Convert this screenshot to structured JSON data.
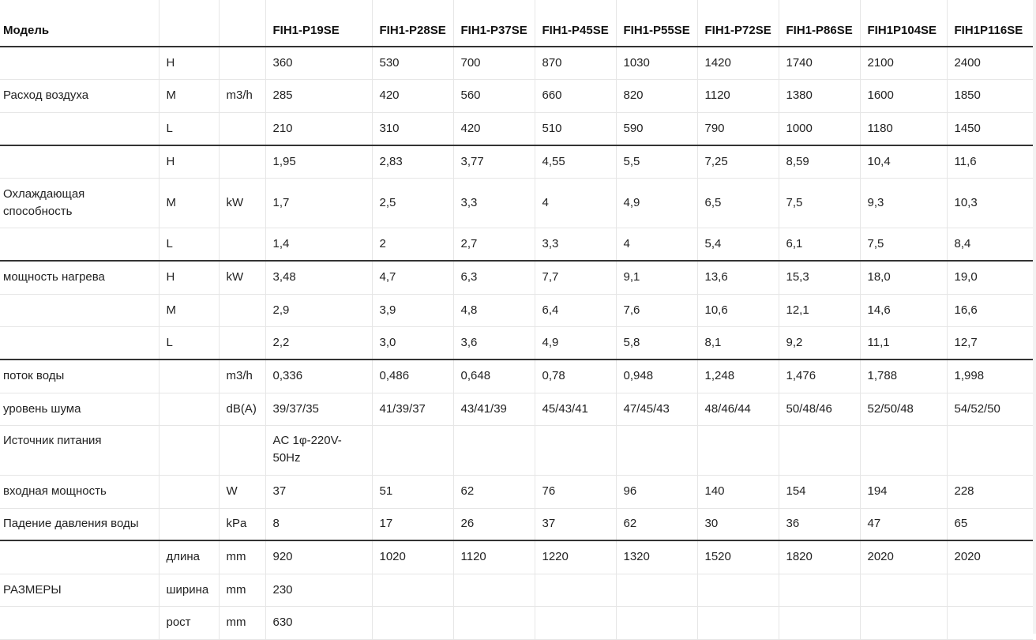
{
  "header": {
    "model_label": "Модель",
    "models": [
      "FIH1-P19SE",
      "FIH1-P28SE",
      "FIH1-P37SE",
      "FIH1-P45SE",
      "FIH1-P55SE",
      "FIH1-P72SE",
      "FIH1-P86SE",
      "FIH1P104SE",
      "FIH1P116SE"
    ]
  },
  "rows": {
    "air_h": [
      "",
      "H",
      "",
      "360",
      "530",
      "700",
      "870",
      "1030",
      "1420",
      "1740",
      "2100",
      "2400"
    ],
    "air_m": [
      "Расход воздуха",
      "M",
      "m3/h",
      "285",
      "420",
      "560",
      "660",
      "820",
      "1120",
      "1380",
      "1600",
      "1850"
    ],
    "air_l": [
      "",
      "L",
      "",
      "210",
      "310",
      "420",
      "510",
      "590",
      "790",
      "1000",
      "1180",
      "1450"
    ],
    "cool_h": [
      "",
      "H",
      "",
      "1,95",
      "2,83",
      "3,77",
      "4,55",
      "5,5",
      "7,25",
      "8,59",
      "10,4",
      "11,6"
    ],
    "cool_m": [
      "Охлаждающая способность",
      "M",
      "kW",
      "1,7",
      "2,5",
      "3,3",
      "4",
      "4,9",
      "6,5",
      "7,5",
      "9,3",
      "10,3"
    ],
    "cool_l": [
      "",
      "L",
      "",
      "1,4",
      "2",
      "2,7",
      "3,3",
      "4",
      "5,4",
      "6,1",
      "7,5",
      "8,4"
    ],
    "heat_h": [
      "мощность нагрева",
      "H",
      "kW",
      "3,48",
      "4,7",
      "6,3",
      "7,7",
      "9,1",
      "13,6",
      "15,3",
      "18,0",
      "19,0"
    ],
    "heat_m": [
      "",
      "M",
      "",
      "2,9",
      "3,9",
      "4,8",
      "6,4",
      "7,6",
      "10,6",
      "12,1",
      "14,6",
      "16,6"
    ],
    "heat_l": [
      "",
      "L",
      "",
      "2,2",
      "3,0",
      "3,6",
      "4,9",
      "5,8",
      "8,1",
      "9,2",
      "11,1",
      "12,7"
    ],
    "water_flow": [
      "поток воды",
      "",
      "m3/h",
      "0,336",
      "0,486",
      "0,648",
      "0,78",
      "0,948",
      "1,248",
      "1,476",
      "1,788",
      "1,998"
    ],
    "noise": [
      "уровень шума",
      "",
      "dB(A)",
      "39/37/35",
      "41/39/37",
      "43/41/39",
      "45/43/41",
      "47/45/43",
      "48/46/44",
      "50/48/46",
      "52/50/48",
      "54/52/50"
    ],
    "power_source": [
      "Источник питания",
      "",
      "",
      "AC 1φ-220V-50Hz",
      "",
      "",
      "",
      "",
      "",
      "",
      "",
      ""
    ],
    "input_power": [
      "входная мощность",
      "",
      "W",
      "37",
      "51",
      "62",
      "76",
      "96",
      "140",
      "154",
      "194",
      "228"
    ],
    "pressure_drop": [
      "Падение давления воды",
      "",
      "kPa",
      "8",
      "17",
      "26",
      "37",
      "62",
      "30",
      "36",
      "47",
      "65"
    ],
    "dim_length": [
      "",
      "длина",
      "mm",
      "920",
      "1020",
      "1120",
      "1220",
      "1320",
      "1520",
      "1820",
      "2020",
      "2020"
    ],
    "dim_width": [
      "РАЗМЕРЫ",
      "ширина",
      "mm",
      "230",
      "",
      "",
      "",
      "",
      "",
      "",
      "",
      ""
    ],
    "dim_height": [
      "",
      "рост",
      "mm",
      "630",
      "",
      "",
      "",
      "",
      "",
      "",
      "",
      ""
    ]
  }
}
